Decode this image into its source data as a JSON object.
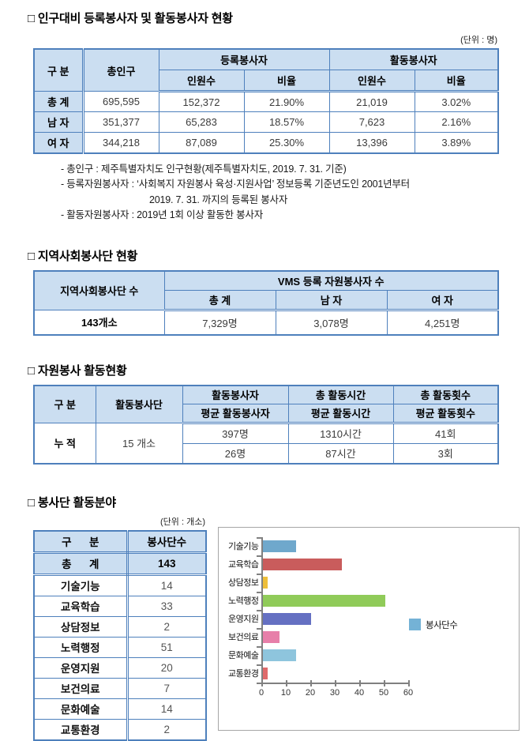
{
  "colors": {
    "table_border": "#4E80BC",
    "header_bg": "#CBDEF1",
    "axis_gray": "#808080",
    "chart_border": "#A6A6A6"
  },
  "section1": {
    "title": "□ 인구대비 등록봉사자 및 활동봉사자 현황",
    "unit": "(단위 : 명)",
    "table": {
      "col_group": "구 분",
      "col_population": "총인구",
      "group_registered": "등록봉사자",
      "group_active": "활동봉사자",
      "sub_cols": [
        "인원수",
        "비율",
        "인원수",
        "비율"
      ],
      "rows": [
        [
          "총 계",
          "695,595",
          "152,372",
          "21.90%",
          "21,019",
          "3.02%"
        ],
        [
          "남 자",
          "351,377",
          "65,283",
          "18.57%",
          "7,623",
          "2.16%"
        ],
        [
          "여 자",
          "344,218",
          "87,089",
          "25.30%",
          "13,396",
          "3.89%"
        ]
      ]
    },
    "notes": [
      "- 총인구 : 제주특별자치도 인구현황(제주특별자치도, 2019. 7. 31. 기준)",
      "- 등록자원봉사자 : ‘사회복지 자원봉사 육성·지원사업’ 정보등록 기준년도인 2001년부터",
      "2019. 7. 31. 까지의 등록된 봉사자",
      "- 활동자원봉사자 : 2019년 1회 이상 활동한 봉사자"
    ]
  },
  "section2": {
    "title": "□ 지역사회봉사단 현황",
    "table": {
      "col_count": "지역사회봉사단 수",
      "group_vms": "VMS 등록 자원봉사자 수",
      "sub_cols": [
        "총 계",
        "남 자",
        "여 자"
      ],
      "row": [
        "143개소",
        "7,329명",
        "3,078명",
        "4,251명"
      ]
    }
  },
  "section3": {
    "title": "□ 자원봉사 활동현황",
    "table": {
      "col_group": "구 분",
      "col_teams": "활동봉사단",
      "top_cols": [
        "활동봉사자",
        "총 활동시간",
        "총 활동횟수"
      ],
      "sub_cols": [
        "평균 활동봉사자",
        "평균 활동시간",
        "평균 활동횟수"
      ],
      "row_label": "누 적",
      "row_teams": "15 개소",
      "row1": [
        "397명",
        "1310시간",
        "41회"
      ],
      "row2": [
        "26명",
        "87시간",
        "3회"
      ]
    }
  },
  "section4": {
    "title": "□ 봉사단 활동분야",
    "unit": "(단위 : 개소)",
    "table": {
      "col_category": "구      분",
      "col_count": "봉사단수",
      "total_row": [
        "총      계",
        "143"
      ],
      "rows": [
        [
          "기술기능",
          "14"
        ],
        [
          "교육학습",
          "33"
        ],
        [
          "상담정보",
          "2"
        ],
        [
          "노력행정",
          "51"
        ],
        [
          "운영지원",
          "20"
        ],
        [
          "보건의료",
          "7"
        ],
        [
          "문화예술",
          "14"
        ],
        [
          "교통환경",
          "2"
        ]
      ]
    }
  },
  "chart_data": {
    "type": "bar",
    "orientation": "horizontal",
    "categories": [
      "기술기능",
      "교육학습",
      "상담정보",
      "노력행정",
      "운영지원",
      "보건의료",
      "문화예술",
      "교통환경"
    ],
    "values": [
      14,
      33,
      2,
      51,
      20,
      7,
      14,
      2
    ],
    "bar_colors": [
      "#6FA8CC",
      "#C95C5C",
      "#EEBF3A",
      "#90CB59",
      "#6570C2",
      "#E77FA9",
      "#8EC5DD",
      "#DF6A6B"
    ],
    "legend": "봉사단수",
    "legend_color": "#74B2D6",
    "legend_position": "right",
    "xlim": [
      0,
      60
    ],
    "x_ticks": [
      0,
      10,
      20,
      30,
      40,
      50,
      60
    ],
    "grid": false,
    "title": "",
    "xlabel": "",
    "ylabel": ""
  }
}
